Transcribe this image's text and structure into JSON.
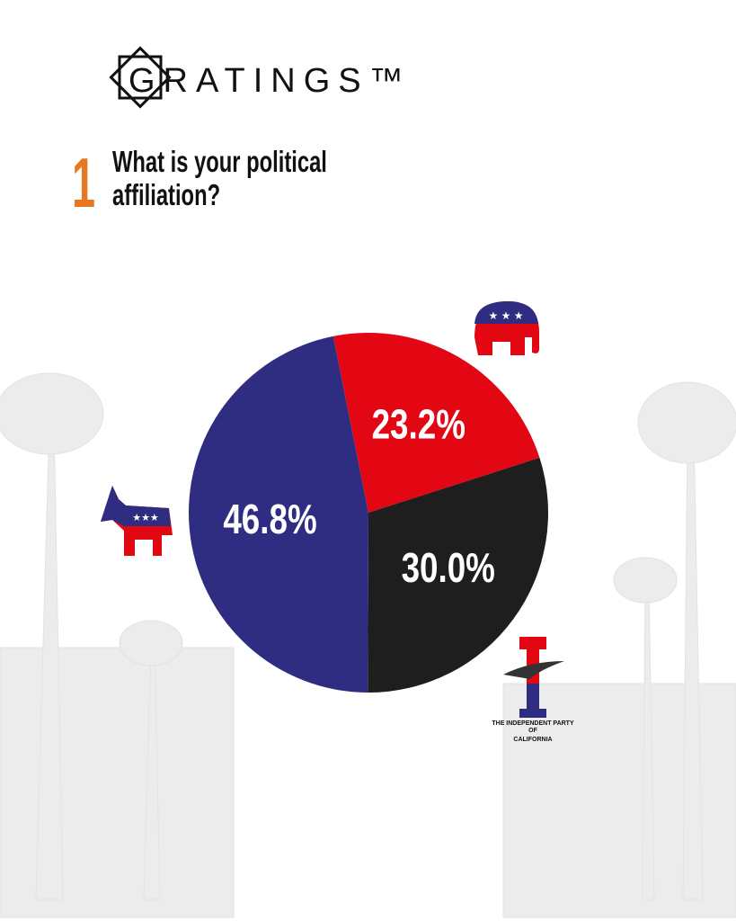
{
  "logo": "GRATINGS™",
  "question_number": "1",
  "question": [
    "What is your political",
    "affiliation?"
  ],
  "independent_logo": [
    "THE INDEPENDENT PARTY",
    "OF",
    "CALIFORNIA"
  ],
  "chart_data": {
    "type": "pie",
    "values": [
      23.2,
      30.0,
      46.8
    ],
    "value_labels": [
      "23.2%",
      "30.0%",
      "46.8%"
    ],
    "colors": [
      "#e30613",
      "#1e1e1e",
      "#2e2d82"
    ]
  }
}
